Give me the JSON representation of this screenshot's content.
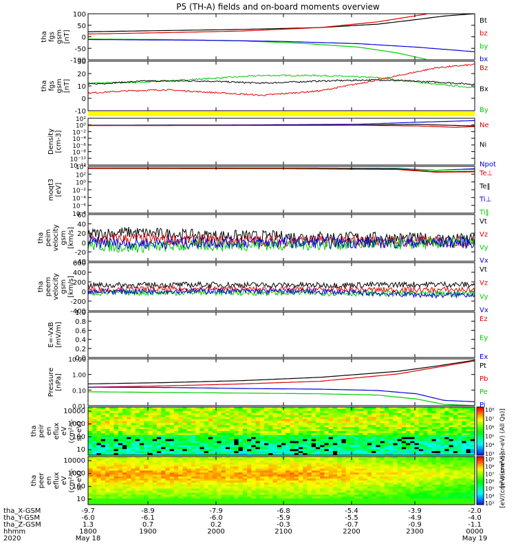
{
  "title": "P5 (TH-A) fields and on-board moments overview",
  "colors": {
    "black": "#000000",
    "red": "#e00000",
    "green": "#00cc00",
    "blue": "#0000dd",
    "yellow": "#ffff00"
  },
  "chart_data": [
    {
      "type": "line",
      "ylabel": [
        "tha",
        "fgs",
        "gsm",
        "[nT]"
      ],
      "yticks": [
        "100",
        "50",
        "0",
        "-50",
        "-100"
      ],
      "ylim": [
        -100,
        100
      ],
      "legend": [
        {
          "name": "Bt",
          "color": "black"
        },
        {
          "name": "bz",
          "color": "red"
        },
        {
          "name": "by",
          "color": "green"
        },
        {
          "name": "bx",
          "color": "blue"
        }
      ],
      "series": [
        {
          "name": "Bt",
          "color": "black",
          "x": [
            0,
            0.2,
            0.4,
            0.6,
            0.75,
            0.85,
            0.92,
            1.0
          ],
          "y": [
            22,
            27,
            32,
            40,
            55,
            75,
            90,
            100
          ]
        },
        {
          "name": "bz",
          "color": "red",
          "x": [
            0,
            0.2,
            0.4,
            0.6,
            0.75,
            0.88
          ],
          "y": [
            12,
            18,
            25,
            40,
            65,
            100
          ]
        },
        {
          "name": "by",
          "color": "green",
          "x": [
            0,
            0.2,
            0.4,
            0.55,
            0.7,
            0.8,
            0.88
          ],
          "y": [
            -10,
            -12,
            -18,
            -28,
            -45,
            -70,
            -100
          ]
        },
        {
          "name": "bx",
          "color": "blue",
          "x": [
            0,
            0.3,
            0.5,
            0.7,
            0.85,
            1.0
          ],
          "y": [
            -12,
            -15,
            -20,
            -30,
            -45,
            -65
          ]
        }
      ]
    },
    {
      "type": "line",
      "ylabel": [
        "tha",
        "fgs",
        "gsm",
        "[nT]"
      ],
      "yticks": [
        "30",
        "20",
        "10",
        "0",
        "-10"
      ],
      "ylim": [
        -15,
        30
      ],
      "legend": [
        {
          "name": "Bz",
          "color": "red"
        },
        {
          "name": "Bx",
          "color": "black"
        },
        {
          "name": "By",
          "color": "green"
        }
      ],
      "series": [
        {
          "name": "By",
          "color": "green",
          "x": [
            0,
            0.15,
            0.3,
            0.45,
            0.6,
            0.75,
            0.9,
            1.0
          ],
          "y": [
            10,
            11,
            14,
            17,
            17,
            15,
            9,
            6
          ]
        },
        {
          "name": "Bx",
          "color": "black",
          "x": [
            0,
            0.15,
            0.3,
            0.45,
            0.6,
            0.75,
            0.9,
            1.0
          ],
          "y": [
            9,
            12,
            12,
            10,
            12,
            13,
            11,
            9
          ]
        },
        {
          "name": "Bz",
          "color": "red",
          "x": [
            0,
            0.1,
            0.2,
            0.35,
            0.45,
            0.6,
            0.75,
            0.9,
            1.0
          ],
          "y": [
            1,
            3,
            4,
            1,
            -1,
            3,
            13,
            24,
            27
          ]
        }
      ]
    },
    {
      "type": "line",
      "ylabel": [
        "Density",
        "[cm-3]"
      ],
      "yticks": [
        "10²",
        "10⁰",
        "10⁻²",
        "10⁻⁴",
        "10⁻⁶",
        "10⁻⁸",
        "10⁻¹⁰",
        "10⁻¹²"
      ],
      "ylim": [
        -12,
        2
      ],
      "log": true,
      "legend": [
        {
          "name": "Ne",
          "color": "red"
        },
        {
          "name": "Ni",
          "color": "black"
        },
        {
          "name": "Npot",
          "color": "blue"
        }
      ],
      "series": [
        {
          "name": "Npot",
          "color": "blue",
          "x": [
            0,
            0.4,
            0.7,
            0.85,
            1.0
          ],
          "y": [
            -0.1,
            0,
            0.2,
            0.8,
            1.3
          ]
        },
        {
          "name": "Ni",
          "color": "black",
          "x": [
            0,
            0.4,
            0.7,
            0.85,
            1.0
          ],
          "y": [
            -0.1,
            -0.1,
            -0.05,
            0.15,
            -0.3
          ]
        },
        {
          "name": "Ne",
          "color": "red",
          "x": [
            0,
            0.4,
            0.7,
            0.85,
            0.95,
            1.0
          ],
          "y": [
            -0.2,
            -0.15,
            -0.1,
            -0.3,
            -0.7,
            -0.5
          ]
        }
      ]
    },
    {
      "type": "line",
      "ylabel": [
        "moqt3",
        "[eV]"
      ],
      "yticks": [
        "10⁴",
        "10²",
        "10⁰",
        "10⁻²",
        "10⁻⁴",
        "10⁻⁶",
        "10⁻⁸"
      ],
      "ylim": [
        -8,
        4
      ],
      "log": true,
      "legend": [
        {
          "name": "Te⊥",
          "color": "red"
        },
        {
          "name": "Te‖",
          "color": "black"
        },
        {
          "name": "Ti⊥",
          "color": "blue"
        },
        {
          "name": "Ti‖",
          "color": "green"
        }
      ],
      "series": [
        {
          "name": "Ti⊥",
          "color": "blue",
          "x": [
            0,
            0.5,
            0.8,
            0.9,
            1.0
          ],
          "y": [
            3.6,
            3.6,
            3.5,
            3.0,
            3.4
          ]
        },
        {
          "name": "Ti‖",
          "color": "green",
          "x": [
            0,
            0.5,
            0.8,
            0.9,
            1.0
          ],
          "y": [
            3.55,
            3.55,
            3.4,
            3.0,
            3.2
          ]
        },
        {
          "name": "Te‖",
          "color": "black",
          "x": [
            0,
            0.5,
            0.8,
            0.9,
            1.0
          ],
          "y": [
            3.5,
            3.45,
            3.3,
            2.6,
            2.7
          ]
        },
        {
          "name": "Te⊥",
          "color": "red",
          "x": [
            0,
            0.5,
            0.8,
            0.9,
            1.0
          ],
          "y": [
            3.45,
            3.4,
            3.2,
            2.5,
            2.6
          ]
        }
      ]
    },
    {
      "type": "line",
      "ylabel": [
        "tha",
        "peim",
        "velocity",
        "gsm",
        "[km/s]"
      ],
      "yticks": [
        "60",
        "40",
        "20",
        "0",
        "-20",
        "-40"
      ],
      "ylim": [
        -40,
        60
      ],
      "legend": [
        {
          "name": "Vt",
          "color": "black"
        },
        {
          "name": "Vz",
          "color": "red"
        },
        {
          "name": "Vy",
          "color": "green"
        },
        {
          "name": "Vx",
          "color": "blue"
        }
      ],
      "series": [
        {
          "name": "Vt",
          "color": "black",
          "x": [
            0,
            0.1,
            0.3,
            0.6,
            0.9,
            1.0
          ],
          "y": [
            18,
            22,
            15,
            12,
            8,
            7
          ]
        },
        {
          "name": "Vz",
          "color": "red",
          "x": [
            0,
            0.1,
            0.3,
            0.6,
            0.9,
            1.0
          ],
          "y": [
            5,
            8,
            4,
            3,
            2,
            2
          ]
        },
        {
          "name": "Vy",
          "color": "green",
          "x": [
            0,
            0.1,
            0.3,
            0.6,
            0.9,
            1.0
          ],
          "y": [
            -5,
            -10,
            -6,
            -4,
            -2,
            -1
          ]
        },
        {
          "name": "Vx",
          "color": "blue",
          "x": [
            0,
            0.1,
            0.3,
            0.6,
            0.9,
            1.0
          ],
          "y": [
            0,
            -2,
            0,
            0,
            0,
            0
          ]
        }
      ]
    },
    {
      "type": "line",
      "ylabel": [
        "tha",
        "peem",
        "velocity",
        "gsm",
        "[km/s]"
      ],
      "yticks": [
        "600",
        "400",
        "200",
        "0",
        "-200",
        "-400"
      ],
      "ylim": [
        -400,
        600
      ],
      "legend": [
        {
          "name": "Vt",
          "color": "black"
        },
        {
          "name": "Vz",
          "color": "red"
        },
        {
          "name": "Vy",
          "color": "green"
        },
        {
          "name": "Vx",
          "color": "blue"
        }
      ],
      "series": [
        {
          "name": "Vt",
          "color": "black",
          "x": [
            0,
            0.3,
            0.6,
            0.9,
            1.0
          ],
          "y": [
            130,
            140,
            130,
            150,
            140
          ]
        },
        {
          "name": "Vz",
          "color": "red",
          "x": [
            0,
            0.3,
            0.6,
            0.9,
            1.0
          ],
          "y": [
            40,
            50,
            40,
            30,
            40
          ]
        },
        {
          "name": "Vy",
          "color": "green",
          "x": [
            0,
            0.3,
            0.6,
            0.9,
            1.0
          ],
          "y": [
            -30,
            -20,
            -30,
            -50,
            -40
          ]
        },
        {
          "name": "Vx",
          "color": "blue",
          "x": [
            0,
            0.3,
            0.6,
            0.9,
            1.0
          ],
          "y": [
            0,
            10,
            0,
            -80,
            -60
          ]
        }
      ]
    },
    {
      "type": "line",
      "ylabel": [
        "E=-VxB",
        "[mV/m]"
      ],
      "yticks": [
        "1.0",
        "0.8",
        "0.6",
        "0.4",
        "0.2",
        "0.0"
      ],
      "ylim": [
        0,
        1
      ],
      "legend": [
        {
          "name": "Ez",
          "color": "red"
        },
        {
          "name": "Ey",
          "color": "green"
        },
        {
          "name": "Ex",
          "color": "blue"
        }
      ],
      "series": []
    },
    {
      "type": "line",
      "ylabel": [
        "Pressure",
        "[nPa]"
      ],
      "yticks": [
        "10.00",
        "1.00",
        "0.10",
        "0.01"
      ],
      "ylim": [
        -2.1,
        1.45
      ],
      "log": true,
      "legend": [
        {
          "name": "Pt",
          "color": "black"
        },
        {
          "name": "Pb",
          "color": "red"
        },
        {
          "name": "Pe",
          "color": "green"
        },
        {
          "name": "Pi",
          "color": "blue"
        }
      ],
      "series": [
        {
          "name": "Pt",
          "color": "black",
          "x": [
            0,
            0.2,
            0.4,
            0.6,
            0.8,
            0.9,
            1.0
          ],
          "y": [
            -0.45,
            -0.35,
            -0.2,
            0.05,
            0.5,
            0.9,
            1.35
          ]
        },
        {
          "name": "Pb",
          "color": "red",
          "x": [
            0,
            0.2,
            0.4,
            0.6,
            0.8,
            0.9,
            1.0
          ],
          "y": [
            -0.7,
            -0.6,
            -0.45,
            -0.25,
            0.3,
            0.8,
            1.3
          ]
        },
        {
          "name": "Pi",
          "color": "blue",
          "x": [
            0,
            0.2,
            0.4,
            0.6,
            0.75,
            0.85,
            0.92,
            1.0
          ],
          "y": [
            -0.7,
            -0.72,
            -0.8,
            -0.85,
            -0.95,
            -1.2,
            -1.7,
            -1.8
          ]
        },
        {
          "name": "Pe",
          "color": "green",
          "x": [
            0,
            0.2,
            0.4,
            0.6,
            0.75,
            0.85,
            0.92,
            1.0
          ],
          "y": [
            -1.05,
            -1.1,
            -1.15,
            -1.2,
            -1.3,
            -1.6,
            -2.0,
            -2.1
          ]
        }
      ]
    },
    {
      "type": "heatmap",
      "ylabel": [
        "tha",
        "peir",
        "en",
        "eflux",
        "eV",
        "(cm²-s-",
        "sr-eV)"
      ],
      "yticks": [
        "10000",
        "1000",
        "100",
        "10"
      ],
      "colorbar_label": "eV/(cm²-s-sr-eV) (All Qs)",
      "colorbar_ticks": [
        "10⁸",
        "10⁷",
        "10⁶",
        "10⁵",
        "10⁴",
        "10³"
      ]
    },
    {
      "type": "heatmap",
      "ylabel": [
        "tha",
        "peer",
        "en",
        "eflux",
        "eV",
        "(cm²-s-",
        "sr-eV)"
      ],
      "yticks": [
        "10000",
        "1000",
        "100",
        "10"
      ],
      "colorbar_label": "eV/(cm²-s-sr-eV)",
      "colorbar_ticks": [
        "10⁹",
        "10⁸",
        "10⁷",
        "10⁶",
        "10⁵",
        "10⁴",
        "10³"
      ]
    }
  ],
  "ephemeris": [
    {
      "label": "tha_X-GSM",
      "values": [
        "-9.7",
        "-8.9",
        "-7.9",
        "-6.8",
        "-5.4",
        "-3.9",
        "-2.0"
      ]
    },
    {
      "label": "tha_Y-GSM",
      "values": [
        "-6.0",
        "-6.1",
        "-6.0",
        "-5.9",
        "-5.5",
        "-4.9",
        "-4.0"
      ]
    },
    {
      "label": "tha_Z-GSM",
      "values": [
        "1.3",
        "0.7",
        "0.2",
        "-0.3",
        "-0.7",
        "-0.9",
        "-1.1"
      ]
    },
    {
      "label": "hhmm",
      "values": [
        "1800",
        "1900",
        "2000",
        "2100",
        "2200",
        "2300",
        "0000"
      ]
    },
    {
      "label": "2020",
      "values": [
        "May 18",
        "",
        "",
        "",
        "",
        "",
        "May 19"
      ]
    }
  ]
}
